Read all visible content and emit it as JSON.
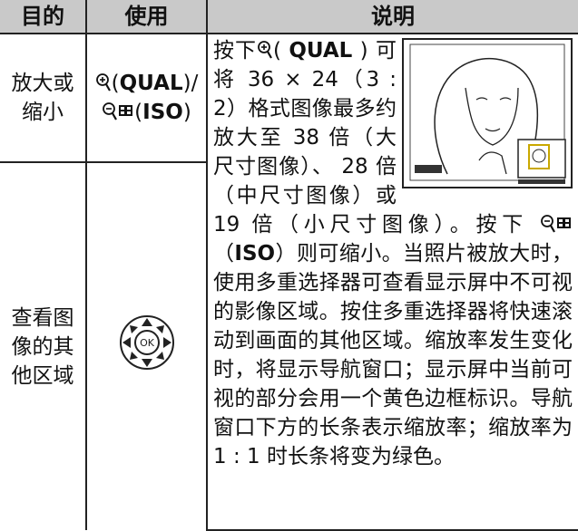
{
  "table": {
    "header": [
      "目的",
      "使用",
      "说明"
    ],
    "rows": [
      {
        "purpose": "放大或缩小",
        "usage": [
          "(",
          "QUAL",
          ")/",
          "(",
          "ISO",
          ")"
        ]
      },
      {
        "purpose": "查看图像的其他区域"
      }
    ],
    "description": [
      "按下",
      "( ",
      "QUAL",
      " ) 可将 36 × 24（3 : 2）格式图像最多约放大至 38 倍（大尺寸图像）、 28 倍（中尺寸图像）或 19 倍（小尺寸图像）。按下 ",
      "（",
      "ISO",
      "）则可缩小。当照片被放大时，使用多重选择器可查看显示屏中不可视的影像区域。按住多重选择器将快速滚动到画面的其他区域。缩放率发生变化时，将显示导航窗口；显示屏中当前可视的部分会用一个黄色边框标识。导航窗口下方的长条表示缩放率；缩放率为 1 : 1 时长条将变为绿色。"
    ]
  }
}
